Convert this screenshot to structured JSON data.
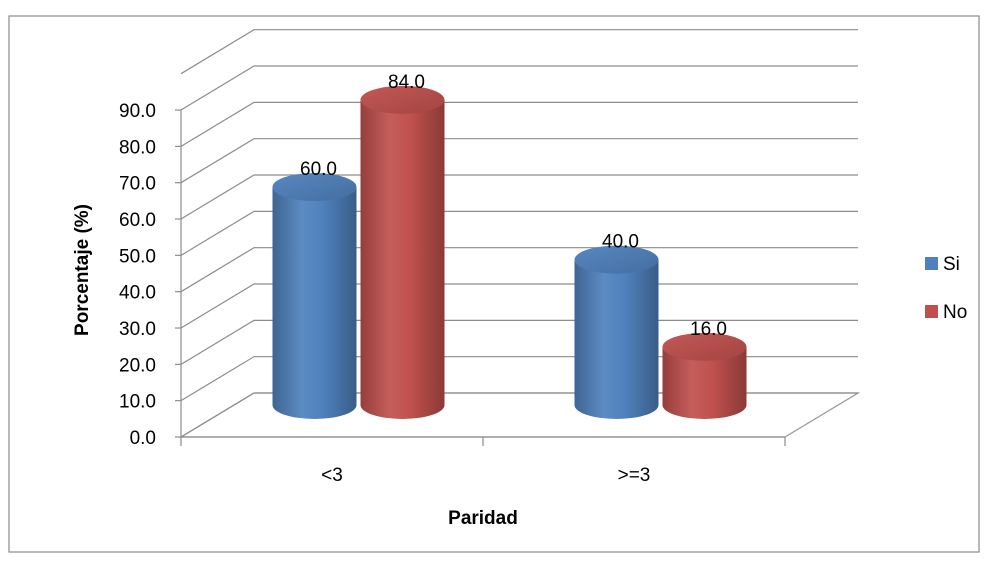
{
  "chart_data": {
    "type": "bar",
    "variant": "3d-cylinder",
    "title": "",
    "xlabel": "Paridad",
    "ylabel": "Porcentaje (%)",
    "ylim": [
      0,
      90
    ],
    "ytick_step": 10,
    "ytick_labels": [
      "0.0",
      "10.0",
      "20.0",
      "30.0",
      "40.0",
      "50.0",
      "60.0",
      "70.0",
      "80.0",
      "90.0"
    ],
    "categories": [
      "<3",
      ">=3"
    ],
    "series": [
      {
        "name": "Si",
        "values": [
          60.0,
          40.0
        ],
        "labels": [
          "60.0",
          "40.0"
        ],
        "color": "#4f81bd"
      },
      {
        "name": "No",
        "values": [
          84.0,
          16.0
        ],
        "labels": [
          "84.0",
          "16.0"
        ],
        "color": "#c0504d"
      }
    ],
    "grid": true,
    "legend": "right"
  }
}
